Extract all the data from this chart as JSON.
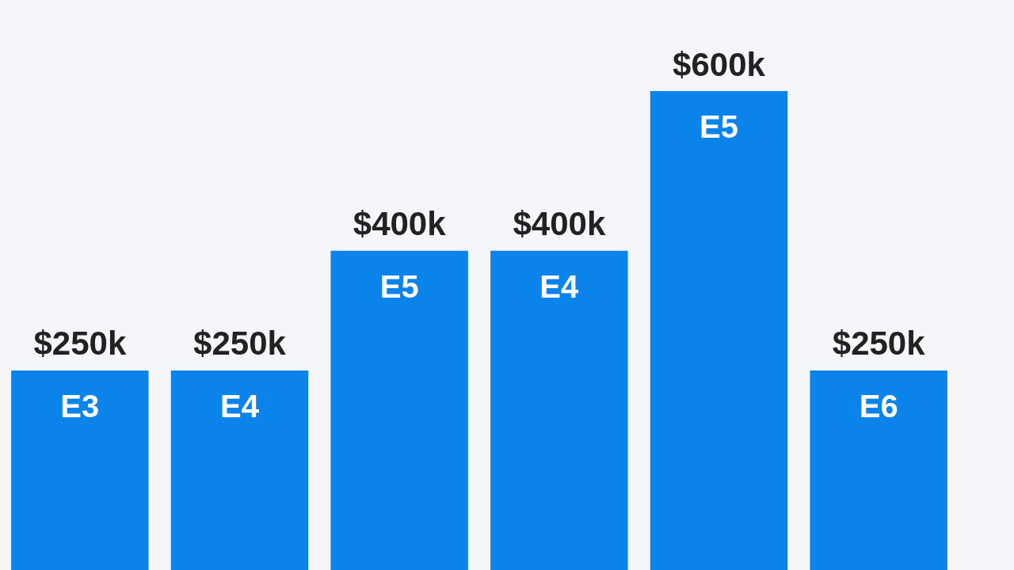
{
  "chart_data": {
    "type": "bar",
    "categories": [
      "E3",
      "E4",
      "E5",
      "E4",
      "E5",
      "E6"
    ],
    "values": [
      250,
      250,
      400,
      400,
      600,
      250
    ],
    "value_labels": [
      "$250k",
      "$250k",
      "$400k",
      "$400k",
      "$600k",
      "$250k"
    ],
    "color": "#0a84ea"
  }
}
